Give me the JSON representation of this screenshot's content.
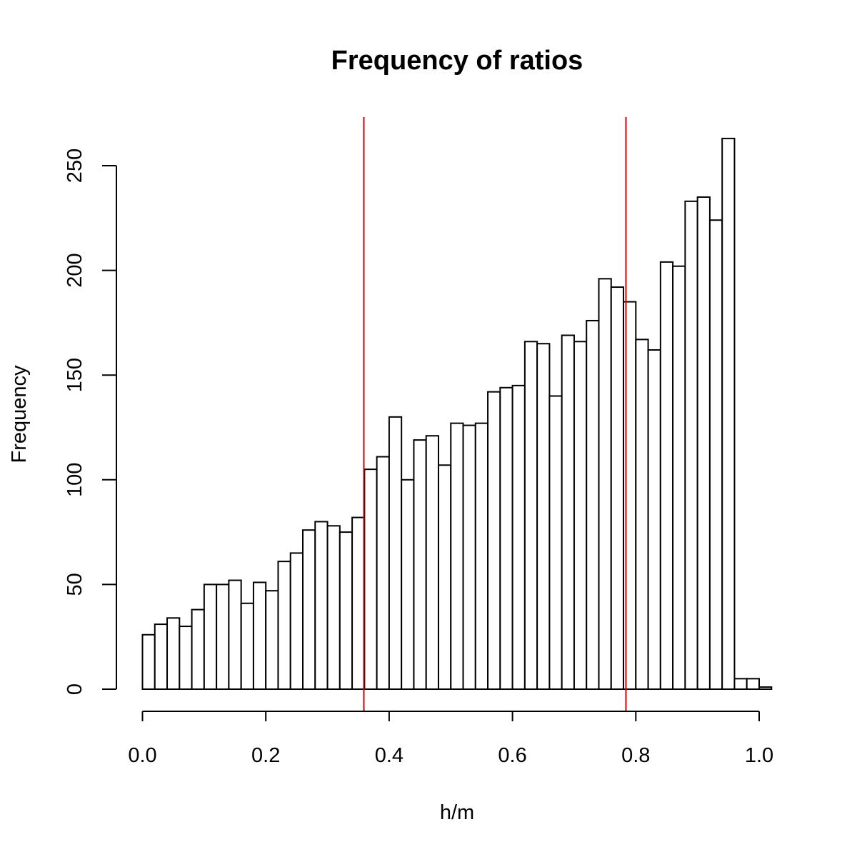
{
  "chart_data": {
    "type": "bar",
    "subtype": "histogram",
    "title": "Frequency of ratios",
    "xlabel": "h/m",
    "ylabel": "Frequency",
    "xlim": [
      0.0,
      1.02
    ],
    "ylim": [
      0,
      263
    ],
    "bin_width": 0.02,
    "bin_start": 0.0,
    "values": [
      26,
      31,
      34,
      30,
      38,
      50,
      50,
      52,
      41,
      51,
      47,
      61,
      65,
      76,
      80,
      78,
      75,
      82,
      105,
      111,
      130,
      100,
      119,
      121,
      107,
      127,
      126,
      127,
      142,
      144,
      145,
      166,
      165,
      140,
      169,
      166,
      176,
      196,
      192,
      185,
      167,
      162,
      204,
      202,
      233,
      235,
      224,
      263,
      5,
      5,
      1
    ],
    "x_ticks": [
      "0.0",
      "0.2",
      "0.4",
      "0.6",
      "0.8",
      "1.0"
    ],
    "x_tick_values": [
      0.0,
      0.2,
      0.4,
      0.6,
      0.8,
      1.0
    ],
    "y_ticks": [
      "0",
      "50",
      "100",
      "150",
      "200",
      "250"
    ],
    "y_tick_values": [
      0,
      50,
      100,
      150,
      200,
      250
    ],
    "reference_lines": [
      {
        "x": 0.359,
        "color": "#d40000"
      },
      {
        "x": 0.784,
        "color": "#d40000"
      }
    ],
    "grid": false,
    "bar_fill": "#ffffff",
    "bar_stroke": "#000000"
  }
}
